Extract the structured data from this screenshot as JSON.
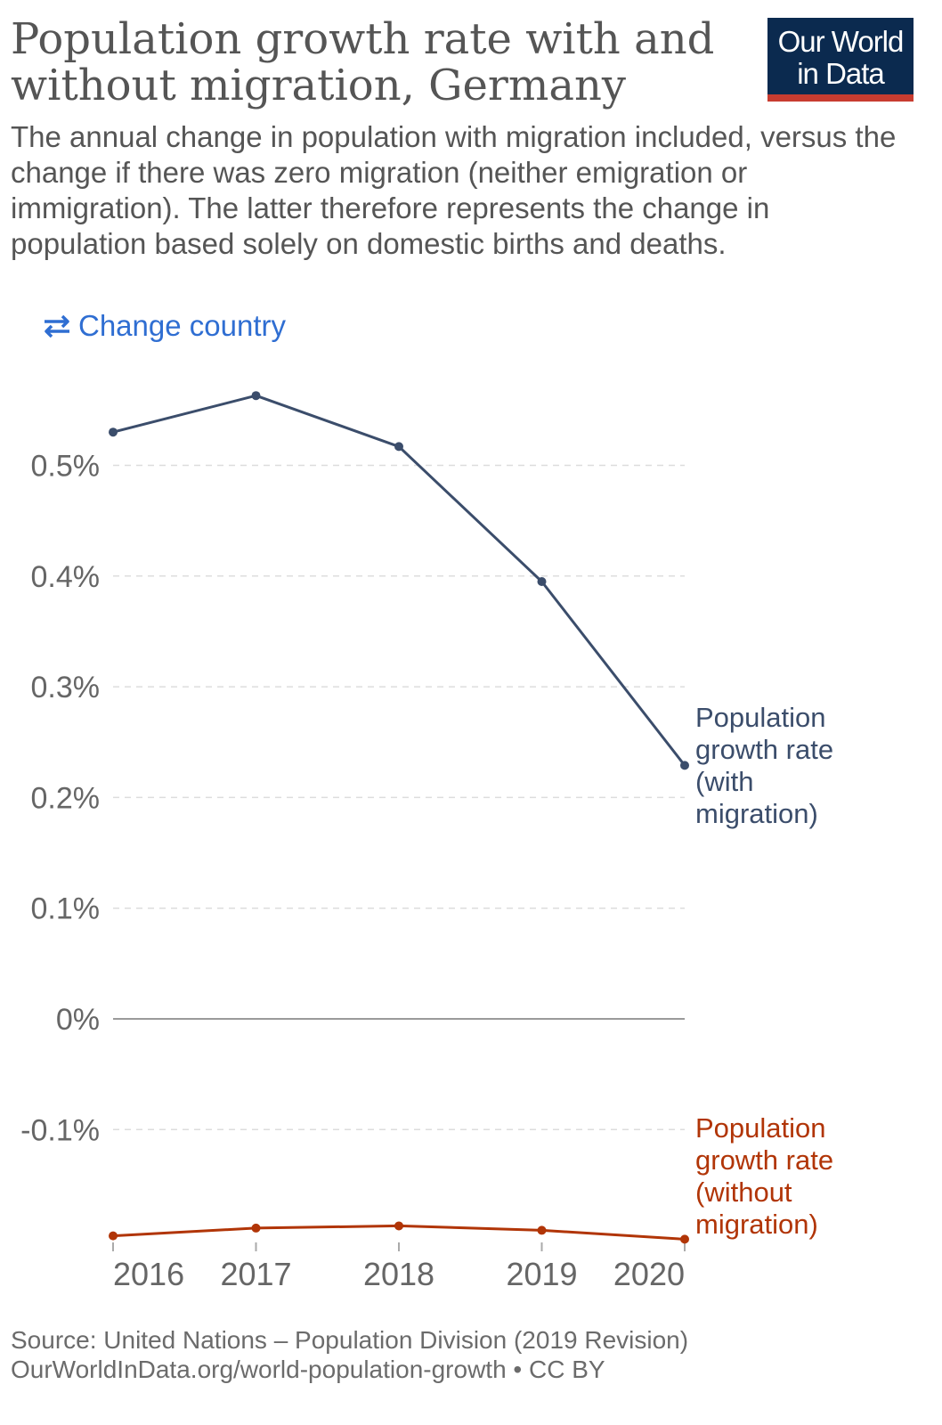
{
  "header": {
    "title": "Population growth rate with and without migration, Germany",
    "subtitle": "The annual change in population with migration included, versus the change if there was zero migration (neither emigration or immigration). The latter therefore represents the change in population based solely on domestic births and deaths.",
    "logo_line1": "Our World",
    "logo_line2": "in Data"
  },
  "controls": {
    "change_country_label": "Change country",
    "change_country_icon": "swap-arrows-icon"
  },
  "chart_data": {
    "type": "line",
    "x": [
      2016,
      2017,
      2018,
      2019,
      2020
    ],
    "series": [
      {
        "name": "Population growth rate (with migration)",
        "label_lines": [
          "Population",
          "growth rate",
          "(with",
          "migration)"
        ],
        "color": "#3b4d6b",
        "values": [
          0.53,
          0.563,
          0.517,
          0.395,
          0.229
        ]
      },
      {
        "name": "Population growth rate (without migration)",
        "label_lines": [
          "Population",
          "growth rate",
          "(without",
          "migration)"
        ],
        "color": "#b13507",
        "values": [
          -0.196,
          -0.189,
          -0.187,
          -0.191,
          -0.199
        ]
      }
    ],
    "y_ticks": [
      {
        "value": -0.1,
        "label": "-0.1%"
      },
      {
        "value": 0,
        "label": "0%"
      },
      {
        "value": 0.1,
        "label": "0.1%"
      },
      {
        "value": 0.2,
        "label": "0.2%"
      },
      {
        "value": 0.3,
        "label": "0.3%"
      },
      {
        "value": 0.4,
        "label": "0.4%"
      },
      {
        "value": 0.5,
        "label": "0.5%"
      }
    ],
    "x_ticks": [
      "2016",
      "2017",
      "2018",
      "2019",
      "2020"
    ],
    "ylim": [
      -0.2,
      0.57
    ],
    "xlim": [
      2016,
      2020
    ],
    "grid": "dashed horizontal",
    "legend": "right (inline labels)"
  },
  "footer": {
    "source": "Source: United Nations – Population Division (2019 Revision)",
    "url_license": "OurWorldInData.org/world-population-growth • CC BY"
  }
}
